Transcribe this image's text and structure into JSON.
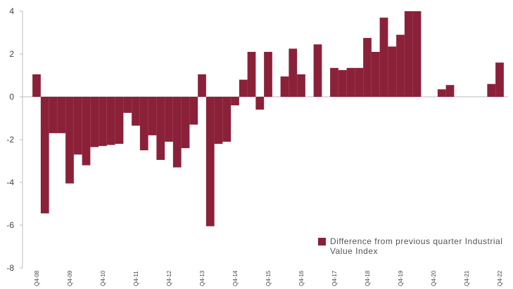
{
  "chart_data": {
    "type": "bar",
    "categories": [
      "Q4-08",
      null,
      null,
      null,
      "Q4-09",
      null,
      null,
      null,
      "Q4-10",
      null,
      null,
      null,
      "Q4-11",
      null,
      null,
      null,
      "Q4-12",
      null,
      null,
      null,
      "Q4-13",
      null,
      null,
      null,
      "Q4-14",
      null,
      null,
      null,
      "Q4-15",
      null,
      null,
      null,
      "Q4-16",
      null,
      null,
      null,
      "Q4-17",
      null,
      null,
      null,
      "Q4-18",
      null,
      null,
      null,
      "Q4-19",
      null,
      null,
      null,
      "Q4-20",
      null,
      null,
      null,
      "Q4-21",
      null,
      null,
      null,
      "Q4-22"
    ],
    "series": [
      {
        "name": "Difference from previous quarter Industrial Value Index",
        "color": "#8b2139",
        "values": [
          1.05,
          -5.45,
          -1.7,
          -1.7,
          -4.05,
          -2.7,
          -3.2,
          -2.35,
          -2.3,
          -2.25,
          -2.2,
          -0.75,
          -1.35,
          -2.5,
          -1.8,
          -2.95,
          -2.1,
          -3.3,
          -2.4,
          -1.3,
          1.05,
          -6.05,
          -2.2,
          -2.1,
          -0.4,
          0.8,
          2.1,
          -0.6,
          2.1,
          0,
          0.95,
          2.25,
          1.05,
          0,
          2.45,
          0,
          1.35,
          1.25,
          1.35,
          1.35,
          2.75,
          2.1,
          3.7,
          2.35,
          2.9,
          4.0,
          4.0,
          0,
          0,
          0.35,
          0.55,
          0,
          0,
          0,
          0,
          0.6,
          1.6
        ]
      }
    ],
    "ylim": [
      -8,
      4
    ],
    "yticks": [
      -8,
      -6,
      -4,
      -2,
      0,
      2,
      4
    ],
    "legend": "bottom-right"
  }
}
